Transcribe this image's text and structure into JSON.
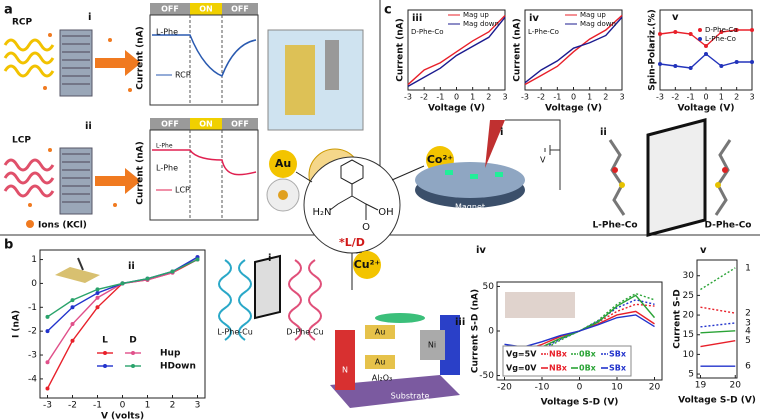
{
  "panel_a": {
    "label": "a",
    "rcp": {
      "label": "RCP",
      "index": "i",
      "states": [
        "OFF",
        "ON",
        "OFF"
      ],
      "ylabel": "Current (nA)",
      "sample": "L-Phe",
      "legend": "RCP"
    },
    "lcp": {
      "label": "LCP",
      "index": "ii",
      "states": [
        "OFF",
        "ON",
        "OFF"
      ],
      "ylabel": "Current (nA)",
      "samples": [
        "L-Phe",
        "L-Phe"
      ],
      "legend": "LCP"
    },
    "ions": "Ions (KCl)"
  },
  "center": {
    "au": "Au",
    "co": "Co²⁺",
    "cu": "Cu²⁺",
    "amine": "H₂N",
    "hydroxyl": "OH",
    "oxygen": "O",
    "chirality": "*L/D"
  },
  "panel_c": {
    "label": "c",
    "iii": {
      "index": "iii",
      "sample": "D-Phe-Co",
      "ylabel": "Current (nA)",
      "xlabel": "Voltage (V)",
      "x": [
        -3,
        -2,
        -1,
        0,
        1,
        2,
        3
      ],
      "xlim": [
        -3,
        3
      ],
      "xticks": [
        -3,
        -2,
        -1,
        0,
        1,
        2,
        3
      ],
      "ylim": [
        -1.1,
        1.1
      ],
      "series": [
        {
          "name": "Mag up",
          "color": "#e8202a",
          "values": [
            -0.95,
            -0.55,
            -0.35,
            -0.05,
            0.25,
            0.5,
            0.95
          ]
        },
        {
          "name": "Mag down",
          "color": "#1b1b8f",
          "values": [
            -1.0,
            -0.75,
            -0.5,
            -0.15,
            0.1,
            0.35,
            0.9
          ]
        }
      ]
    },
    "iv": {
      "index": "iv",
      "sample": "L-Phe-Co",
      "ylabel": "Current (nA)",
      "xlabel": "Voltage (V)",
      "x": [
        -3,
        -2,
        -1,
        0,
        1,
        2,
        3
      ],
      "xlim": [
        -3,
        3
      ],
      "xticks": [
        -3,
        -2,
        -1,
        0,
        1,
        2,
        3
      ],
      "ylim": [
        -1.1,
        1.1
      ],
      "series": [
        {
          "name": "Mag up",
          "color": "#e8202a",
          "values": [
            -0.95,
            -0.7,
            -0.45,
            -0.05,
            0.3,
            0.55,
            0.95
          ]
        },
        {
          "name": "Mag down",
          "color": "#1b1b8f",
          "values": [
            -0.9,
            -0.55,
            -0.3,
            0.05,
            0.2,
            0.4,
            0.9
          ]
        }
      ]
    },
    "v": {
      "index": "v",
      "ylabel": "Spin-Polariz.(%)",
      "xlabel": "Voltage (V)",
      "x": [
        -3,
        -2,
        -1,
        0,
        1,
        2,
        3
      ],
      "xlim": [
        -3,
        3
      ],
      "xticks": [
        -3,
        -2,
        -1,
        0,
        1,
        2,
        3
      ],
      "ylim": [
        -1,
        1
      ],
      "series": [
        {
          "name": "D-Phe-Co",
          "color": "#e8202a",
          "values": [
            0.4,
            0.45,
            0.4,
            0.1,
            0.45,
            0.5,
            0.5
          ]
        },
        {
          "name": "L-Phe-Co",
          "color": "#2233bb",
          "values": [
            -0.35,
            -0.4,
            -0.45,
            -0.1,
            -0.4,
            -0.3,
            -0.3
          ]
        }
      ]
    },
    "i": {
      "index": "i",
      "magnet": "Magnet",
      "voltage": "V"
    },
    "ii": {
      "index": "ii",
      "molecules": [
        "L-Phe-Co",
        "D-Phe-Co"
      ]
    }
  },
  "panel_b": {
    "label": "b",
    "ii": {
      "index": "ii",
      "ylabel": "I (nA)",
      "xlabel": "V (volts)",
      "x": [
        -3,
        -2,
        -1,
        0,
        1,
        2,
        3
      ],
      "xlim": [
        -3.3,
        3.3
      ],
      "xticks": [
        -3,
        -2,
        -1,
        0,
        1,
        2,
        3
      ],
      "ylim": [
        -4.8,
        1.4
      ],
      "yticks": [
        1,
        0,
        -1,
        -2,
        -3,
        -4
      ],
      "legend": {
        "columns": [
          "L",
          "D"
        ],
        "rows": [
          "Hup",
          "HDown"
        ]
      },
      "series": [
        {
          "color": "#e8202a",
          "values": [
            -4.4,
            -2.4,
            -1.0,
            0,
            0.15,
            0.45,
            1.0
          ]
        },
        {
          "color": "#e0508a",
          "values": [
            -3.3,
            -1.7,
            -0.6,
            0,
            0.15,
            0.45,
            1.1
          ]
        },
        {
          "color": "#2233cc",
          "values": [
            -2.0,
            -1.0,
            -0.4,
            0,
            0.2,
            0.5,
            1.1
          ]
        },
        {
          "color": "#2aa36b",
          "values": [
            -1.4,
            -0.7,
            -0.25,
            0,
            0.2,
            0.5,
            1.0
          ]
        }
      ]
    },
    "i": {
      "index": "i",
      "molecules": [
        "L-Phe-Cu",
        "D-Phe-Cu"
      ]
    },
    "iii": {
      "index": "iii",
      "labels": [
        "N",
        "Au",
        "Ni",
        "Au",
        "Al₂O₃",
        "Substrate"
      ]
    },
    "iv": {
      "index": "iv",
      "ylabel": "Current S-D (nA)",
      "xlabel": "Voltage S-D (V)",
      "x": [
        -20,
        -15,
        -10,
        -5,
        0,
        5,
        10,
        15,
        20
      ],
      "xlim": [
        -22,
        22
      ],
      "xticks": [
        -20,
        -10,
        0,
        10,
        20
      ],
      "ylim": [
        -55,
        55
      ],
      "yticks": [
        50,
        0,
        -50
      ],
      "groups": [
        {
          "name": "Vg=5V",
          "dash": true,
          "series": [
            {
              "name": "NBx",
              "color": "#e8202a",
              "values": [
                -30,
                -28,
                -18,
                -8,
                0,
                10,
                22,
                30,
                28
              ]
            },
            {
              "name": "0Bx",
              "color": "#2aa336",
              "values": [
                -40,
                -35,
                -22,
                -10,
                0,
                12,
                30,
                42,
                35
              ]
            },
            {
              "name": "SBx",
              "color": "#2233cc",
              "values": [
                -35,
                -30,
                -20,
                -9,
                0,
                11,
                26,
                35,
                30
              ]
            }
          ]
        },
        {
          "name": "Vg=0V",
          "dash": false,
          "series": [
            {
              "name": "NBx",
              "color": "#e8202a",
              "values": [
                -20,
                -22,
                -15,
                -6,
                0,
                8,
                18,
                22,
                8
              ]
            },
            {
              "name": "0Bx",
              "color": "#2aa336",
              "values": [
                -25,
                -28,
                -18,
                -8,
                0,
                10,
                28,
                40,
                15
              ]
            },
            {
              "name": "SBx",
              "color": "#2233cc",
              "values": [
                -15,
                -18,
                -12,
                -5,
                0,
                7,
                15,
                18,
                5
              ]
            }
          ]
        }
      ]
    },
    "v": {
      "index": "v",
      "ylabel": "Current S-D",
      "xlabel": "Voltage S-D (V)",
      "x": [
        19,
        20
      ],
      "xlim": [
        18.9,
        20.05
      ],
      "xticks": [
        19,
        20
      ],
      "ylim": [
        4,
        34
      ],
      "yticks": [
        30,
        25,
        20,
        15,
        10,
        5
      ],
      "series": [
        {
          "name": "1",
          "color": "#2aa336",
          "dash": true,
          "values": [
            26.5,
            32
          ]
        },
        {
          "name": "2",
          "color": "#e8202a",
          "dash": true,
          "values": [
            22,
            20.5
          ]
        },
        {
          "name": "3",
          "color": "#2233cc",
          "dash": true,
          "values": [
            17,
            18
          ]
        },
        {
          "name": "4",
          "color": "#2aa336",
          "dash": false,
          "values": [
            15.5,
            16
          ]
        },
        {
          "name": "5",
          "color": "#e8202a",
          "dash": false,
          "values": [
            12,
            13.5
          ]
        },
        {
          "name": "6",
          "color": "#2233cc",
          "dash": false,
          "values": [
            7,
            7
          ]
        }
      ]
    }
  }
}
